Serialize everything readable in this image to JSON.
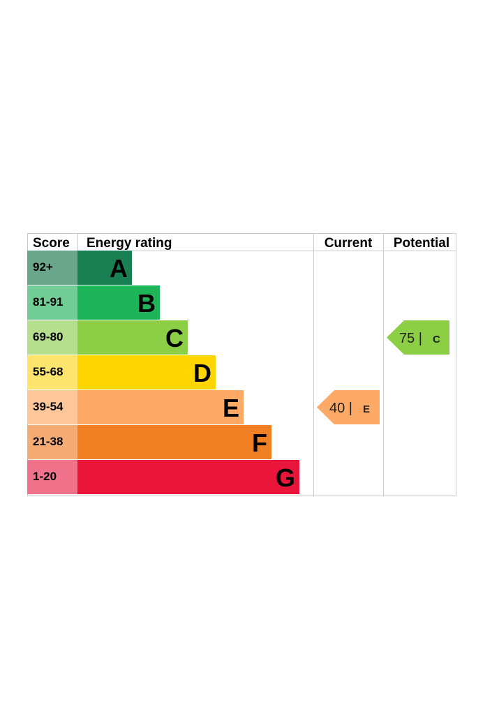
{
  "chart_data": {
    "type": "bar",
    "headers": {
      "score": "Score",
      "rating": "Energy rating",
      "current": "Current",
      "potential": "Potential"
    },
    "bands": [
      {
        "letter": "A",
        "range": "92+",
        "color": "#1a8053",
        "score_bg": "#6aa68b"
      },
      {
        "letter": "B",
        "range": "81-91",
        "color": "#1db45a",
        "score_bg": "#72cc96"
      },
      {
        "letter": "C",
        "range": "69-80",
        "color": "#8ccf46",
        "score_bg": "#b5df8c"
      },
      {
        "letter": "D",
        "range": "55-68",
        "color": "#ffd500",
        "score_bg": "#fde46c"
      },
      {
        "letter": "E",
        "range": "39-54",
        "color": "#fcaa65",
        "score_bg": "#fdc79a"
      },
      {
        "letter": "F",
        "range": "21-38",
        "color": "#ef8023",
        "score_bg": "#f5ac74"
      },
      {
        "letter": "G",
        "range": "1-20",
        "color": "#e9153b",
        "score_bg": "#f1728b"
      }
    ],
    "current": {
      "value": 40,
      "letter": "E",
      "label": "40 |",
      "color": "#fcaa65"
    },
    "potential": {
      "value": 75,
      "letter": "C",
      "label": "75 |",
      "color": "#8ccf46"
    }
  }
}
